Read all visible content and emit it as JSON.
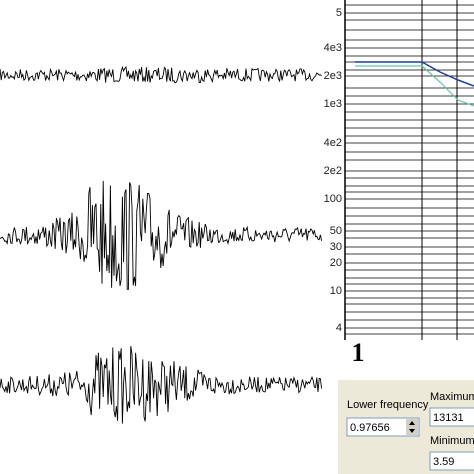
{
  "plot": {
    "y_labels": [
      "5",
      "4e3",
      "2e3",
      "1e3",
      "4e2",
      "2e2",
      "100",
      "50",
      "30",
      "20",
      "10",
      "4"
    ],
    "x_label": "1"
  },
  "panel": {
    "lower_frequency": {
      "label": "Lower frequency",
      "value": "0.97656"
    },
    "maximum": {
      "label": "Maximum",
      "value": "13131"
    },
    "minimum": {
      "label": "Minimum",
      "value": "3.59"
    }
  }
}
